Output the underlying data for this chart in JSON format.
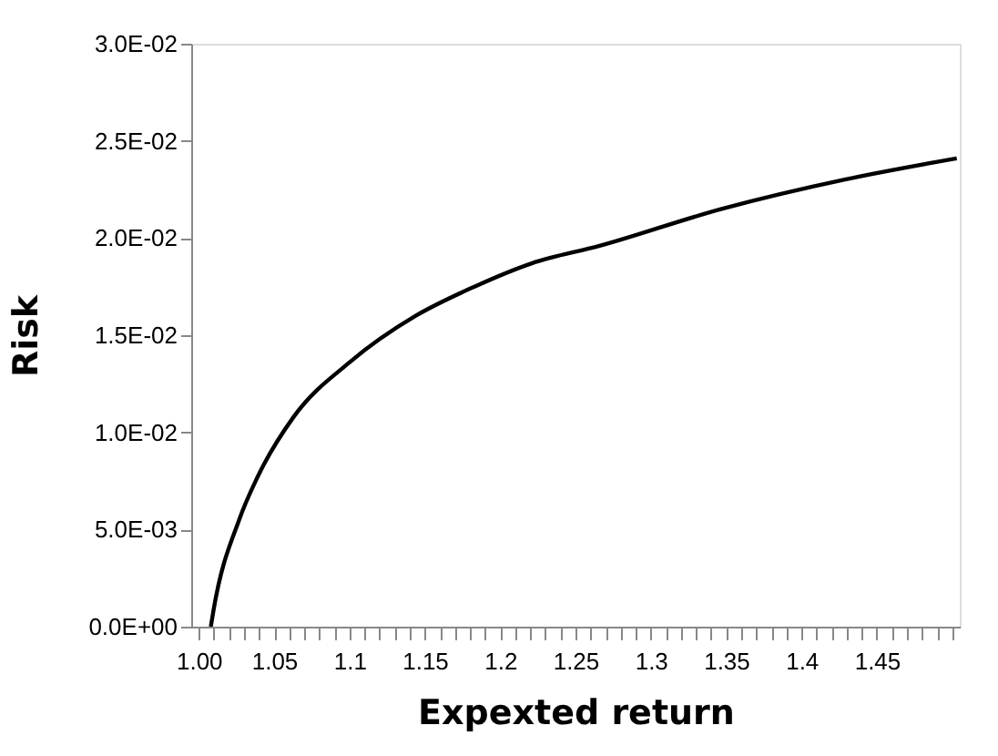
{
  "chart_data": {
    "type": "line",
    "xlabel": "Expexted return",
    "ylabel": "Risk",
    "x": [
      1.008,
      1.0097,
      1.0268,
      1.039,
      1.063,
      1.1,
      1.144,
      1.183,
      1.221,
      1.266,
      1.347,
      1.428,
      1.503
    ],
    "series": [
      {
        "color": "#000000",
        "values": [
          0,
          0.0008,
          0.0055,
          0.0077,
          0.0108,
          0.0136,
          0.016,
          0.0175,
          0.0187,
          0.0196,
          0.0215,
          0.023,
          0.0241
        ]
      }
    ],
    "xlim": [
      0.995,
      1.505
    ],
    "xticks": [
      {
        "value": 1.0,
        "label": "1.00"
      },
      {
        "value": 1.01,
        "label": null
      },
      {
        "value": 1.02,
        "label": null
      },
      {
        "value": 1.03,
        "label": null
      },
      {
        "value": 1.04,
        "label": null
      },
      1.05,
      {
        "value": 1.06,
        "label": null
      },
      {
        "value": 1.07,
        "label": null
      },
      {
        "value": 1.08,
        "label": null
      },
      {
        "value": 1.09,
        "label": null
      },
      1.1,
      {
        "value": 1.11,
        "label": null
      },
      {
        "value": 1.12,
        "label": null
      },
      {
        "value": 1.13,
        "label": null
      },
      {
        "value": 1.14,
        "label": null
      },
      1.15,
      {
        "value": 1.16,
        "label": null
      },
      {
        "value": 1.17,
        "label": null
      },
      {
        "value": 1.18,
        "label": null
      },
      {
        "value": 1.19,
        "label": null
      },
      1.2,
      {
        "value": 1.21,
        "label": null
      },
      {
        "value": 1.22,
        "label": null
      },
      {
        "value": 1.23,
        "label": null
      },
      {
        "value": 1.24,
        "label": null
      },
      1.25,
      {
        "value": 1.26,
        "label": null
      },
      {
        "value": 1.27,
        "label": null
      },
      {
        "value": 1.28,
        "label": null
      },
      {
        "value": 1.29,
        "label": null
      },
      1.3,
      {
        "value": 1.31,
        "label": null
      },
      {
        "value": 1.32,
        "label": null
      },
      {
        "value": 1.33,
        "label": null
      },
      {
        "value": 1.34,
        "label": null
      },
      1.35,
      {
        "value": 1.36,
        "label": null
      },
      {
        "value": 1.37,
        "label": null
      },
      {
        "value": 1.38,
        "label": null
      },
      {
        "value": 1.39,
        "label": null
      },
      1.4,
      {
        "value": 1.41,
        "label": null
      },
      {
        "value": 1.42,
        "label": null
      },
      {
        "value": 1.43,
        "label": null
      },
      {
        "value": 1.44,
        "label": null
      },
      1.45,
      {
        "value": 1.46,
        "label": null
      },
      {
        "value": 1.47,
        "label": null
      },
      {
        "value": 1.48,
        "label": null
      },
      {
        "value": 1.49,
        "label": null
      },
      {
        "value": 1.5,
        "label": null
      }
    ],
    "ylim": [
      0,
      0.03
    ],
    "yticks": [
      {
        "value": 0,
        "label": "0.0E+00"
      },
      {
        "value": 0.005,
        "label": "5.0E-03"
      },
      {
        "value": 0.01,
        "label": "1.0E-02"
      },
      {
        "value": 0.015,
        "label": "1.5E-02"
      },
      {
        "value": 0.02,
        "label": "2.0E-02"
      },
      {
        "value": 0.025,
        "label": "2.5E-02"
      },
      {
        "value": 0.03,
        "label": "3.0E-02"
      }
    ],
    "grid": false,
    "marker": "none",
    "line_style": "solid"
  }
}
